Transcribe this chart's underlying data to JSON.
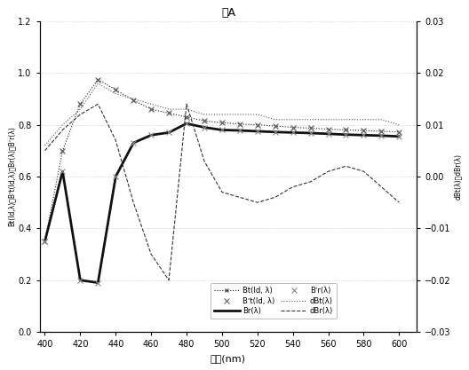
{
  "title": "紙A",
  "xlabel": "波長(nm)",
  "ylabel_left": "Bt(Id,λ)、Bʼt(Id,λ)、Br(λ)、Bʼr(λ)",
  "ylabel_right": "dBt(λ)、dBr(λ)",
  "x": [
    400,
    410,
    420,
    430,
    440,
    450,
    460,
    470,
    480,
    490,
    500,
    510,
    520,
    530,
    540,
    550,
    560,
    570,
    580,
    590,
    600
  ],
  "Bt": [
    0.35,
    0.7,
    0.88,
    0.975,
    0.935,
    0.895,
    0.86,
    0.845,
    0.83,
    0.815,
    0.808,
    0.803,
    0.8,
    0.795,
    0.79,
    0.787,
    0.783,
    0.78,
    0.778,
    0.775,
    0.772
  ],
  "Br": [
    0.35,
    0.62,
    0.2,
    0.19,
    0.6,
    0.73,
    0.76,
    0.77,
    0.805,
    0.79,
    0.78,
    0.778,
    0.775,
    0.772,
    0.77,
    0.768,
    0.765,
    0.762,
    0.76,
    0.758,
    0.755
  ],
  "Bt_prime": [
    0.35,
    0.7,
    0.88,
    0.975,
    0.935,
    0.895,
    0.86,
    0.845,
    0.83,
    0.815,
    0.808,
    0.803,
    0.8,
    0.795,
    0.79,
    0.787,
    0.783,
    0.78,
    0.778,
    0.775,
    0.772
  ],
  "Br_prime": [
    0.35,
    0.62,
    0.2,
    0.19,
    0.6,
    0.73,
    0.76,
    0.77,
    0.805,
    0.79,
    0.78,
    0.778,
    0.775,
    0.772,
    0.77,
    0.768,
    0.765,
    0.762,
    0.76,
    0.758,
    0.755
  ],
  "dBt": [
    0.006,
    0.01,
    0.013,
    0.018,
    0.016,
    0.015,
    0.014,
    0.013,
    0.013,
    0.012,
    0.012,
    0.012,
    0.012,
    0.011,
    0.011,
    0.011,
    0.011,
    0.011,
    0.011,
    0.011,
    0.01
  ],
  "dBr": [
    0.005,
    0.009,
    0.012,
    0.014,
    0.007,
    -0.005,
    -0.015,
    -0.02,
    0.014,
    0.003,
    -0.003,
    -0.004,
    -0.005,
    -0.004,
    -0.002,
    -0.001,
    0.001,
    0.002,
    0.001,
    -0.002,
    -0.005
  ],
  "ylim_left": [
    0,
    1.2
  ],
  "ylim_right": [
    -0.03,
    0.03
  ],
  "xlim_left": 397,
  "xlim_right": 610,
  "xticks": [
    400,
    420,
    440,
    460,
    480,
    500,
    520,
    540,
    560,
    580,
    600
  ],
  "yticks_left": [
    0,
    0.2,
    0.4,
    0.6,
    0.8,
    1.0,
    1.2
  ],
  "yticks_right": [
    -0.03,
    -0.02,
    -0.01,
    0.0,
    0.01,
    0.02,
    0.03
  ],
  "color_Bt": "#222222",
  "color_Br": "#111111",
  "color_dBt": "#555555",
  "color_dBr": "#333333"
}
